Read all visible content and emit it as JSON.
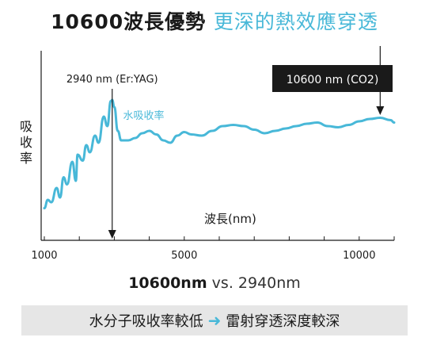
{
  "header": {
    "title_main": "10600波長優勢",
    "title_highlight": "更深的熱效應穿透"
  },
  "comparison": {
    "primary": "10600nm",
    "separator": "vs.",
    "secondary": "2940nm"
  },
  "footer": {
    "left_text": "水分子吸收率較低",
    "arrow_icon": "right-arrow-icon",
    "right_text": "雷射穿透深度較深"
  },
  "colors": {
    "curve": "#48b8d8",
    "accent_text": "#48b8d8",
    "callout_bg": "#1a1a1a",
    "bar_bg": "#e6e6e6"
  },
  "chart_data": {
    "type": "line",
    "ylabel": "吸收率",
    "xlabel": "波長(nm)",
    "x_ticks": [
      1000,
      5000,
      10000
    ],
    "xlim": [
      1000,
      11000
    ],
    "y_ticks_shown": false,
    "grid": false,
    "series": [
      {
        "name": "水吸收率",
        "x": [
          1000,
          1100,
          1200,
          1350,
          1450,
          1550,
          1650,
          1800,
          1900,
          1950,
          2100,
          2200,
          2300,
          2450,
          2550,
          2700,
          2800,
          2900,
          2940,
          3000,
          3100,
          3200,
          3400,
          3600,
          3800,
          4000,
          4200,
          4400,
          4600,
          4800,
          5000,
          5200,
          5500,
          5800,
          6100,
          6400,
          6700,
          7000,
          7300,
          7600,
          7900,
          8200,
          8500,
          8800,
          9100,
          9400,
          9700,
          10000,
          10300,
          10600,
          10900,
          11000
        ],
        "y": [
          0.05,
          0.12,
          0.1,
          0.22,
          0.14,
          0.31,
          0.25,
          0.44,
          0.28,
          0.5,
          0.45,
          0.58,
          0.52,
          0.66,
          0.6,
          0.82,
          0.74,
          0.95,
          0.96,
          0.9,
          0.7,
          0.62,
          0.62,
          0.64,
          0.68,
          0.7,
          0.67,
          0.62,
          0.6,
          0.66,
          0.69,
          0.67,
          0.66,
          0.7,
          0.74,
          0.75,
          0.74,
          0.71,
          0.68,
          0.7,
          0.72,
          0.74,
          0.76,
          0.77,
          0.74,
          0.73,
          0.75,
          0.78,
          0.8,
          0.81,
          0.79,
          0.77
        ]
      }
    ],
    "markers": [
      {
        "label": "2940 nm (Er:YAG)",
        "x": 2940
      },
      {
        "label": "10600 nm (CO2)",
        "x": 10600
      }
    ],
    "series_label": "水吸收率"
  }
}
